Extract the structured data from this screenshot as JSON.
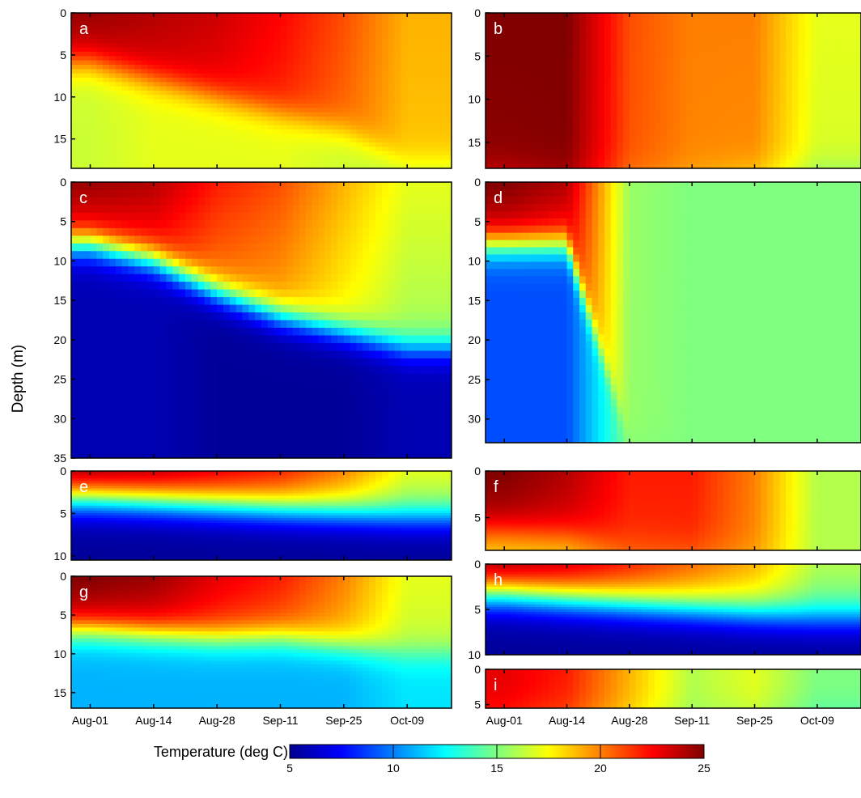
{
  "chart_data": {
    "type": "heatmap",
    "ylabel": "Depth (m)",
    "x_tick_labels": [
      "Aug-01",
      "Aug-14",
      "Aug-28",
      "Sep-11",
      "Sep-25",
      "Oct-09"
    ],
    "colorbar": {
      "label": "Temperature (deg C)",
      "range": [
        5,
        25
      ],
      "ticks": [
        5,
        10,
        15,
        20,
        25
      ],
      "colormap": "jet"
    },
    "panels": [
      {
        "letter": "a",
        "ylim": [
          0,
          18.5
        ],
        "y_ticks": [
          0,
          5,
          10,
          15
        ],
        "surface_temp_by_date": [
          24.5,
          24,
          23.5,
          22.5,
          21,
          19
        ],
        "bottom_temp_by_date": [
          16.5,
          17,
          17,
          17,
          16.5,
          16
        ],
        "thermocline_depth_by_date": [
          6,
          8,
          10,
          12,
          14,
          18
        ]
      },
      {
        "letter": "b",
        "ylim": [
          0,
          18
        ],
        "y_ticks": [
          0,
          5,
          10,
          15
        ],
        "surface_temp_by_date": [
          25,
          25,
          21,
          20,
          20,
          17
        ],
        "bottom_temp_by_date": [
          23,
          24,
          20,
          19,
          18,
          15
        ],
        "thermocline_depth_by_date": [
          18,
          18,
          18,
          18,
          18,
          18
        ]
      },
      {
        "letter": "c",
        "ylim": [
          0,
          35
        ],
        "y_ticks": [
          0,
          5,
          10,
          15,
          20,
          25,
          30,
          35
        ],
        "surface_temp_by_date": [
          24.5,
          24,
          22,
          21,
          19,
          17
        ],
        "bottom_temp_by_date": [
          6,
          6,
          5.5,
          5.5,
          5.5,
          6
        ],
        "thermocline_depth_by_date": [
          8,
          10,
          14,
          17,
          19,
          21
        ]
      },
      {
        "letter": "d",
        "ylim": [
          0,
          33
        ],
        "y_ticks": [
          0,
          5,
          10,
          15,
          20,
          25,
          30
        ],
        "surface_temp_by_date": [
          25,
          24,
          15.5,
          15,
          15,
          15
        ],
        "bottom_temp_by_date": [
          9,
          9,
          15,
          15,
          15,
          15
        ],
        "thermocline_depth_by_date": [
          8,
          8,
          33,
          33,
          33,
          33
        ]
      },
      {
        "letter": "e",
        "ylim": [
          0,
          10.5
        ],
        "y_ticks": [
          0,
          5,
          10
        ],
        "surface_temp_by_date": [
          24.5,
          24,
          23,
          22,
          20,
          17
        ],
        "bottom_temp_by_date": [
          5.5,
          5.5,
          5.5,
          5.5,
          5.5,
          5.5
        ],
        "thermocline_depth_by_date": [
          3.5,
          3.8,
          4.2,
          4.6,
          5,
          5.5
        ]
      },
      {
        "letter": "f",
        "ylim": [
          0,
          8.5
        ],
        "y_ticks": [
          0,
          5
        ],
        "surface_temp_by_date": [
          25,
          24,
          22,
          22,
          20,
          16
        ],
        "bottom_temp_by_date": [
          18,
          18,
          20,
          20,
          19,
          16
        ],
        "thermocline_depth_by_date": [
          6.5,
          7,
          8,
          8.5,
          8.5,
          8.5
        ]
      },
      {
        "letter": "g",
        "ylim": [
          0,
          17
        ],
        "y_ticks": [
          0,
          5,
          10,
          15
        ],
        "surface_temp_by_date": [
          25,
          24.5,
          23,
          22,
          20,
          17
        ],
        "bottom_temp_by_date": [
          11,
          11,
          11,
          11,
          11,
          12
        ],
        "thermocline_depth_by_date": [
          7,
          7.5,
          8,
          8,
          9,
          10
        ]
      },
      {
        "letter": "h",
        "ylim": [
          0,
          10
        ],
        "y_ticks": [
          0,
          5,
          10
        ],
        "surface_temp_by_date": [
          24.5,
          23.5,
          22,
          20.5,
          19,
          16
        ],
        "bottom_temp_by_date": [
          5.5,
          5.5,
          5.5,
          5.5,
          5.5,
          5.5
        ],
        "thermocline_depth_by_date": [
          3.5,
          4,
          4.5,
          5,
          5.5,
          6
        ]
      },
      {
        "letter": "i",
        "ylim": [
          0,
          5.5
        ],
        "y_ticks": [
          0,
          5
        ],
        "surface_temp_by_date": [
          23,
          22,
          19,
          16,
          17,
          15
        ],
        "bottom_temp_by_date": [
          22,
          21,
          18,
          15.5,
          16,
          14
        ],
        "thermocline_depth_by_date": [
          5,
          5,
          5.5,
          5.5,
          5.5,
          5.5
        ]
      }
    ]
  }
}
